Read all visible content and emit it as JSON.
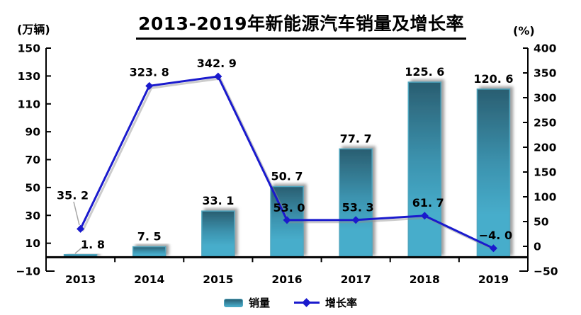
{
  "title": "2013-2019年新能源汽车销量及增长率",
  "left_axis": {
    "unit": "(万辆)",
    "ticks": [
      150,
      130,
      110,
      90,
      70,
      50,
      30,
      10,
      -10
    ]
  },
  "right_axis": {
    "unit": "(%)",
    "ticks": [
      400,
      350,
      300,
      250,
      200,
      150,
      100,
      50,
      0,
      -50
    ]
  },
  "x_axis": {
    "labels": [
      "2013",
      "2014",
      "2015",
      "2016",
      "2017",
      "2018",
      "2019"
    ]
  },
  "legend": {
    "items": [
      {
        "label": "销量",
        "marker": "bar-swatch"
      },
      {
        "label": "增长率",
        "marker": "line-diamond"
      }
    ]
  },
  "colors": {
    "bar_top": "#2a5e71",
    "bar_mid": "#3c93af",
    "bar_bottom": "#47adcb",
    "bar_border": "#4fa6bf",
    "line": "#1a1acd",
    "shadow": "#8f8f8f",
    "leader": "#a6a6a6",
    "axis": "#000000",
    "text": "#000000"
  },
  "chart_data": {
    "type": "bar+line",
    "title": "2013-2019年新能源汽车销量及增长率",
    "categories": [
      "2013",
      "2014",
      "2015",
      "2016",
      "2017",
      "2018",
      "2019"
    ],
    "series": [
      {
        "name": "销量",
        "type": "bar",
        "axis": "left",
        "unit": "万辆",
        "values": [
          1.8,
          7.5,
          33.1,
          50.7,
          77.7,
          125.6,
          120.6
        ],
        "labels": [
          "1. 8",
          "7. 5",
          "33. 1",
          "50. 7",
          "77. 7",
          "125. 6",
          "120. 6"
        ]
      },
      {
        "name": "增长率",
        "type": "line",
        "axis": "right",
        "unit": "%",
        "values": [
          35.2,
          323.8,
          342.9,
          53.0,
          53.3,
          61.7,
          -4.0
        ],
        "labels": [
          "35. 2",
          "323. 8",
          "342. 9",
          "53. 0",
          "53. 3",
          "61. 7",
          "−4. 0"
        ]
      }
    ],
    "ylim_left": [
      -10,
      150
    ],
    "ytick_step_left": 20,
    "ylim_right": [
      -50,
      400
    ],
    "ytick_step_right": 50,
    "grid": false,
    "legend_position": "bottom"
  }
}
